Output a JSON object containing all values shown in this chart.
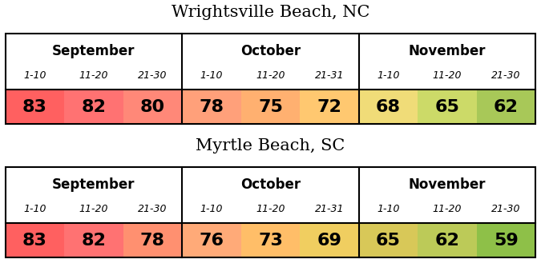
{
  "title1": "Wrightsville Beach, NC",
  "title2": "Myrtle Beach, SC",
  "months": [
    "September",
    "October",
    "November"
  ],
  "sub_labels": [
    [
      "1-10",
      "11-20",
      "21-30"
    ],
    [
      "1-10",
      "11-20",
      "21-31"
    ],
    [
      "1-10",
      "11-20",
      "21-30"
    ]
  ],
  "wb_values": [
    83,
    82,
    80,
    78,
    75,
    72,
    68,
    65,
    62
  ],
  "mb_values": [
    83,
    82,
    78,
    76,
    73,
    69,
    65,
    62,
    59
  ],
  "wb_colors": [
    "#FF6666",
    "#FF7070",
    "#FF8878",
    "#FFA07A",
    "#FFB080",
    "#FFC878",
    "#F0DC78",
    "#CCDA68",
    "#A8C858"
  ],
  "mb_colors": [
    "#FF6666",
    "#FF7070",
    "#FF9070",
    "#FFAA78",
    "#FFBE6A",
    "#F0CE60",
    "#D8C858",
    "#BCCA58",
    "#8EC048"
  ],
  "bg_color": "#FFFFFF",
  "border_color": "#000000",
  "text_color": "#000000",
  "title_fontsize": 15,
  "month_fontsize": 12,
  "sublabel_fontsize": 9,
  "value_fontsize": 16
}
